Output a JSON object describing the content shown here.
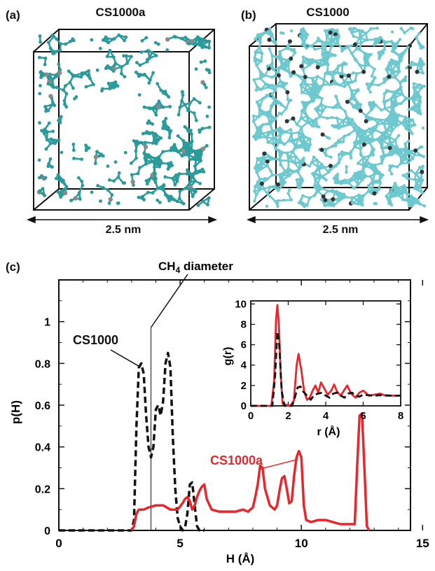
{
  "panels": {
    "a": {
      "letter": "(a)",
      "title": "CS1000a",
      "scale": "2.5 nm"
    },
    "b": {
      "letter": "(b)",
      "title": "CS1000",
      "scale": "2.5 nm"
    },
    "c": {
      "letter": "(c)"
    }
  },
  "colors": {
    "cs1000": "#111111",
    "cs1000a": "#e8262b",
    "atom_a": "#2a9a9a",
    "atom_b": "#6ec9cf",
    "hetero_a": "#8a8a8a",
    "hetero_b": "#333333"
  },
  "chart_data": [
    {
      "type": "line",
      "id": "main",
      "xlabel": "H (Å)",
      "ylabel": "p(H)",
      "xlim": [
        0,
        14.5
      ],
      "ylim": [
        0,
        1.2
      ],
      "xticks": [
        0,
        5,
        10,
        15
      ],
      "yticks": [
        0,
        0.2,
        0.4,
        0.6,
        0.8,
        1
      ],
      "ytick_labels": [
        "0",
        "0.2",
        "0.4",
        "0.6",
        "0.8",
        "1"
      ],
      "grid": false,
      "reference_line": {
        "x": 3.8,
        "label_main": "CH",
        "label_sub": "4",
        "label_tail": " diameter"
      },
      "annotations": [
        {
          "text": "CS1000",
          "series": "CS1000"
        },
        {
          "text": "CS1000a",
          "series": "CS1000a"
        }
      ],
      "series": [
        {
          "name": "CS1000",
          "style": "dashed",
          "points": [
            [
              0,
              0
            ],
            [
              3.0,
              0
            ],
            [
              3.1,
              0.05
            ],
            [
              3.2,
              0.5
            ],
            [
              3.3,
              0.78
            ],
            [
              3.4,
              0.8
            ],
            [
              3.5,
              0.75
            ],
            [
              3.6,
              0.55
            ],
            [
              3.7,
              0.4
            ],
            [
              3.8,
              0.35
            ],
            [
              3.9,
              0.4
            ],
            [
              4.0,
              0.58
            ],
            [
              4.1,
              0.6
            ],
            [
              4.2,
              0.55
            ],
            [
              4.3,
              0.62
            ],
            [
              4.4,
              0.8
            ],
            [
              4.5,
              0.85
            ],
            [
              4.6,
              0.78
            ],
            [
              4.7,
              0.45
            ],
            [
              4.8,
              0.2
            ],
            [
              4.9,
              0.06
            ],
            [
              5.0,
              0.02
            ],
            [
              5.1,
              0.0
            ],
            [
              5.2,
              0.01
            ],
            [
              5.3,
              0.08
            ],
            [
              5.4,
              0.22
            ],
            [
              5.5,
              0.23
            ],
            [
              5.6,
              0.12
            ],
            [
              5.7,
              0.02
            ],
            [
              5.8,
              0.0
            ],
            [
              6.0,
              0.0
            ]
          ]
        },
        {
          "name": "CS1000a",
          "style": "solid",
          "points": [
            [
              3.0,
              0
            ],
            [
              3.1,
              0.02
            ],
            [
              3.2,
              0.08
            ],
            [
              3.3,
              0.1
            ],
            [
              3.5,
              0.1
            ],
            [
              3.7,
              0.11
            ],
            [
              4.0,
              0.12
            ],
            [
              4.3,
              0.12
            ],
            [
              4.6,
              0.1
            ],
            [
              4.9,
              0.1
            ],
            [
              5.1,
              0.13
            ],
            [
              5.2,
              0.15
            ],
            [
              5.3,
              0.16
            ],
            [
              5.4,
              0.14
            ],
            [
              5.5,
              0.1
            ],
            [
              5.6,
              0.12
            ],
            [
              5.7,
              0.16
            ],
            [
              5.8,
              0.19
            ],
            [
              5.9,
              0.21
            ],
            [
              6.0,
              0.22
            ],
            [
              6.1,
              0.15
            ],
            [
              6.3,
              0.1
            ],
            [
              6.6,
              0.09
            ],
            [
              7.0,
              0.09
            ],
            [
              7.3,
              0.09
            ],
            [
              7.6,
              0.1
            ],
            [
              7.8,
              0.09
            ],
            [
              8.0,
              0.11
            ],
            [
              8.1,
              0.16
            ],
            [
              8.2,
              0.22
            ],
            [
              8.3,
              0.31
            ],
            [
              8.4,
              0.3
            ],
            [
              8.5,
              0.2
            ],
            [
              8.7,
              0.12
            ],
            [
              8.9,
              0.1
            ],
            [
              9.0,
              0.12
            ],
            [
              9.1,
              0.19
            ],
            [
              9.2,
              0.25
            ],
            [
              9.3,
              0.26
            ],
            [
              9.4,
              0.2
            ],
            [
              9.5,
              0.13
            ],
            [
              9.6,
              0.14
            ],
            [
              9.7,
              0.26
            ],
            [
              9.8,
              0.35
            ],
            [
              9.9,
              0.38
            ],
            [
              10.0,
              0.35
            ],
            [
              10.1,
              0.12
            ],
            [
              10.2,
              0.05
            ],
            [
              10.4,
              0.04
            ],
            [
              10.7,
              0.05
            ],
            [
              11.0,
              0.05
            ],
            [
              11.3,
              0.04
            ],
            [
              11.6,
              0.03
            ],
            [
              11.9,
              0.03
            ],
            [
              12.2,
              0.03
            ],
            [
              12.3,
              0.3
            ],
            [
              12.4,
              0.55
            ],
            [
              12.5,
              0.56
            ],
            [
              12.6,
              0.3
            ],
            [
              12.7,
              0.02
            ],
            [
              12.8,
              0.0
            ]
          ]
        }
      ]
    },
    {
      "type": "line",
      "id": "inset",
      "xlabel": "r (Å)",
      "ylabel": "g(r)",
      "xlim": [
        0,
        8
      ],
      "ylim": [
        0,
        10.3
      ],
      "xticks": [
        0,
        2,
        4,
        6,
        8
      ],
      "yticks": [
        0,
        2,
        4,
        6,
        8,
        10
      ],
      "grid": false,
      "series": [
        {
          "name": "CS1000a",
          "style": "solid",
          "points": [
            [
              0,
              0
            ],
            [
              1.1,
              0
            ],
            [
              1.25,
              2.5
            ],
            [
              1.35,
              8.5
            ],
            [
              1.42,
              9.9
            ],
            [
              1.5,
              8.0
            ],
            [
              1.6,
              3.0
            ],
            [
              1.7,
              0.2
            ],
            [
              2.1,
              0
            ],
            [
              2.3,
              0.5
            ],
            [
              2.45,
              4.0
            ],
            [
              2.55,
              5.1
            ],
            [
              2.7,
              3.5
            ],
            [
              2.85,
              1.4
            ],
            [
              3.0,
              0.6
            ],
            [
              3.15,
              0.8
            ],
            [
              3.3,
              1.5
            ],
            [
              3.45,
              2.0
            ],
            [
              3.6,
              1.3
            ],
            [
              3.75,
              2.3
            ],
            [
              3.9,
              1.8
            ],
            [
              4.1,
              1.1
            ],
            [
              4.3,
              1.5
            ],
            [
              4.45,
              2.1
            ],
            [
              4.6,
              1.4
            ],
            [
              4.8,
              1.0
            ],
            [
              5.0,
              1.6
            ],
            [
              5.15,
              2.0
            ],
            [
              5.35,
              1.2
            ],
            [
              5.6,
              0.8
            ],
            [
              5.8,
              1.3
            ],
            [
              6.0,
              1.5
            ],
            [
              6.3,
              1.0
            ],
            [
              6.6,
              1.1
            ],
            [
              6.9,
              1.2
            ],
            [
              7.2,
              1.0
            ],
            [
              7.5,
              1.0
            ],
            [
              8.0,
              1.0
            ]
          ]
        },
        {
          "name": "CS1000",
          "style": "dashed",
          "points": [
            [
              0,
              0
            ],
            [
              1.15,
              0
            ],
            [
              1.3,
              3.0
            ],
            [
              1.42,
              7.3
            ],
            [
              1.52,
              6.0
            ],
            [
              1.65,
              1.5
            ],
            [
              1.8,
              0
            ],
            [
              2.2,
              0
            ],
            [
              2.35,
              0.8
            ],
            [
              2.5,
              1.8
            ],
            [
              2.65,
              1.9
            ],
            [
              2.8,
              1.4
            ],
            [
              3.0,
              1.0
            ],
            [
              3.2,
              0.6
            ],
            [
              3.4,
              1.1
            ],
            [
              3.6,
              1.2
            ],
            [
              3.8,
              1.3
            ],
            [
              4.0,
              1.0
            ],
            [
              4.2,
              0.8
            ],
            [
              4.4,
              1.2
            ],
            [
              4.6,
              1.3
            ],
            [
              4.8,
              1.0
            ],
            [
              5.0,
              0.8
            ],
            [
              5.2,
              1.2
            ],
            [
              5.4,
              1.3
            ],
            [
              5.6,
              1.0
            ],
            [
              5.8,
              0.9
            ],
            [
              6.0,
              1.1
            ],
            [
              6.5,
              1.0
            ],
            [
              7.0,
              1.05
            ],
            [
              7.5,
              1.0
            ],
            [
              8.0,
              1.0
            ]
          ]
        }
      ]
    }
  ]
}
